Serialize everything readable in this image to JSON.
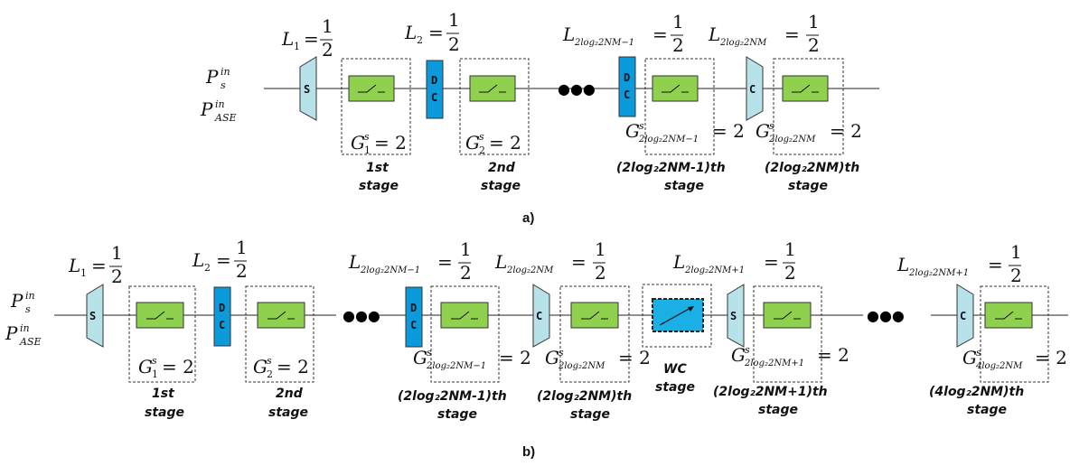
{
  "colors": {
    "amp_fill": "#8fd14f",
    "dc_fill": "#0b9bdc",
    "sc_fill": "#b8e2ea",
    "wc_fill": "#1ab0e6"
  },
  "icons": [
    "splitter-trapezoid",
    "combiner-trapezoid",
    "switch-symbol",
    "wavelength-converter-arrow"
  ],
  "labels": {
    "S": "S",
    "D": "D",
    "C": "C",
    "half_num": "1",
    "half_den": "2",
    "eq": "=",
    "gain_val": "= 2",
    "dots": "●●●",
    "P": "P",
    "sub_s": "s",
    "sub_ase": "ASE",
    "sup_in": "in",
    "L": "L",
    "G": "G",
    "sup_s": "s",
    "sub_1": "1",
    "sub_2": "2",
    "sub_2log_m1": "2log₂2NM−1",
    "sub_2log": "2log₂2NM",
    "sub_2log_p1": "2log₂2NM+1",
    "sub_4log": "4log₂2NM"
  },
  "stages": {
    "s1_a": "1st",
    "s1_b": "stage",
    "s2_a": "2nd",
    "s2_b": "stage",
    "sm_a": "(2log₂2NM-1)th",
    "sm_b": "stage",
    "sn_a": "(2log₂2NM)th",
    "sn_b": "stage",
    "wc_a": "WC",
    "wc_b": "stage",
    "sp_a": "(2log₂2NM+1)th",
    "sp_b": "stage",
    "s4_a": "(4log₂2NM)th",
    "s4_b": "stage"
  },
  "captions": {
    "a": "a)",
    "b": "b)"
  }
}
